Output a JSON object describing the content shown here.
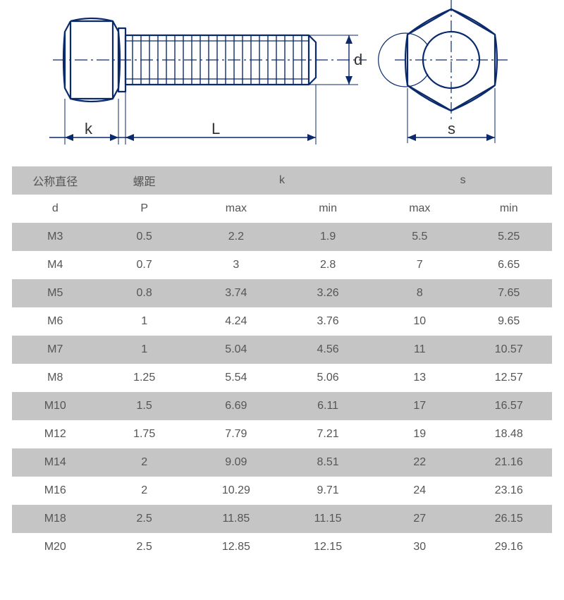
{
  "diagram": {
    "labels": {
      "d": "d",
      "k": "k",
      "L": "L",
      "s": "s"
    },
    "stroke": "#0a2a6b",
    "stroke_width": 2,
    "dash_color": "#0a2a6b",
    "text_color": "#333333",
    "font_size": 22
  },
  "table": {
    "header_bg": "#c5c5c5",
    "row_alt_bg": "#c5c5c5",
    "row_bg": "#ffffff",
    "text_color": "#555555",
    "font_size": 16,
    "columns_top": [
      "公称直径",
      "螺距",
      "k",
      "s"
    ],
    "columns_sub": [
      "d",
      "P",
      "max",
      "min",
      "max",
      "min"
    ],
    "rows": [
      [
        "M3",
        "0.5",
        "2.2",
        "1.9",
        "5.5",
        "5.25"
      ],
      [
        "M4",
        "0.7",
        "3",
        "2.8",
        "7",
        "6.65"
      ],
      [
        "M5",
        "0.8",
        "3.74",
        "3.26",
        "8",
        "7.65"
      ],
      [
        "M6",
        "1",
        "4.24",
        "3.76",
        "10",
        "9.65"
      ],
      [
        "M7",
        "1",
        "5.04",
        "4.56",
        "11",
        "10.57"
      ],
      [
        "M8",
        "1.25",
        "5.54",
        "5.06",
        "13",
        "12.57"
      ],
      [
        "M10",
        "1.5",
        "6.69",
        "6.11",
        "17",
        "16.57"
      ],
      [
        "M12",
        "1.75",
        "7.79",
        "7.21",
        "19",
        "18.48"
      ],
      [
        "M14",
        "2",
        "9.09",
        "8.51",
        "22",
        "21.16"
      ],
      [
        "M16",
        "2",
        "10.29",
        "9.71",
        "24",
        "23.16"
      ],
      [
        "M18",
        "2.5",
        "11.85",
        "11.15",
        "27",
        "26.15"
      ],
      [
        "M20",
        "2.5",
        "12.85",
        "12.15",
        "30",
        "29.16"
      ]
    ]
  }
}
